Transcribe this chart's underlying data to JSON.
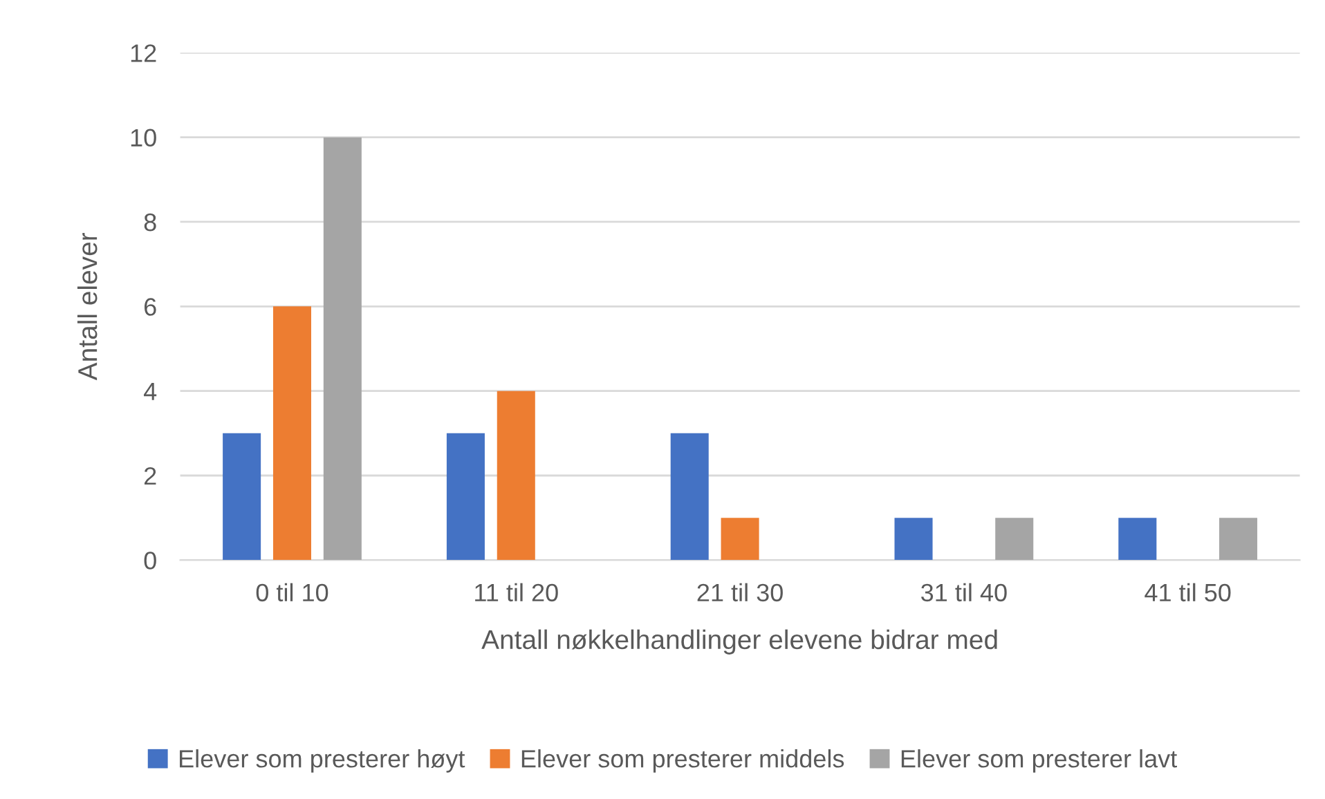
{
  "chart_data": {
    "type": "bar",
    "xlabel": "Antall nøkkelhandlinger elevene bidrar med",
    "ylabel": "Antall elever",
    "categories": [
      "0 til 10",
      "11 til 20",
      "21 til 30",
      "31 til 40",
      "41 til 50"
    ],
    "series": [
      {
        "name": "Elever som presterer høyt",
        "color": "#4472c4",
        "values": [
          3,
          3,
          3,
          1,
          1
        ]
      },
      {
        "name": "Elever som presterer middels",
        "color": "#ed7d31",
        "values": [
          6,
          4,
          1,
          0,
          0
        ]
      },
      {
        "name": "Elever som presterer lavt",
        "color": "#a5a5a5",
        "values": [
          10,
          0,
          0,
          1,
          1
        ]
      }
    ],
    "ylim": [
      0,
      12
    ],
    "yticks": [
      0,
      2,
      4,
      6,
      8,
      10,
      12
    ],
    "grid": "y",
    "legend": "bottom"
  }
}
